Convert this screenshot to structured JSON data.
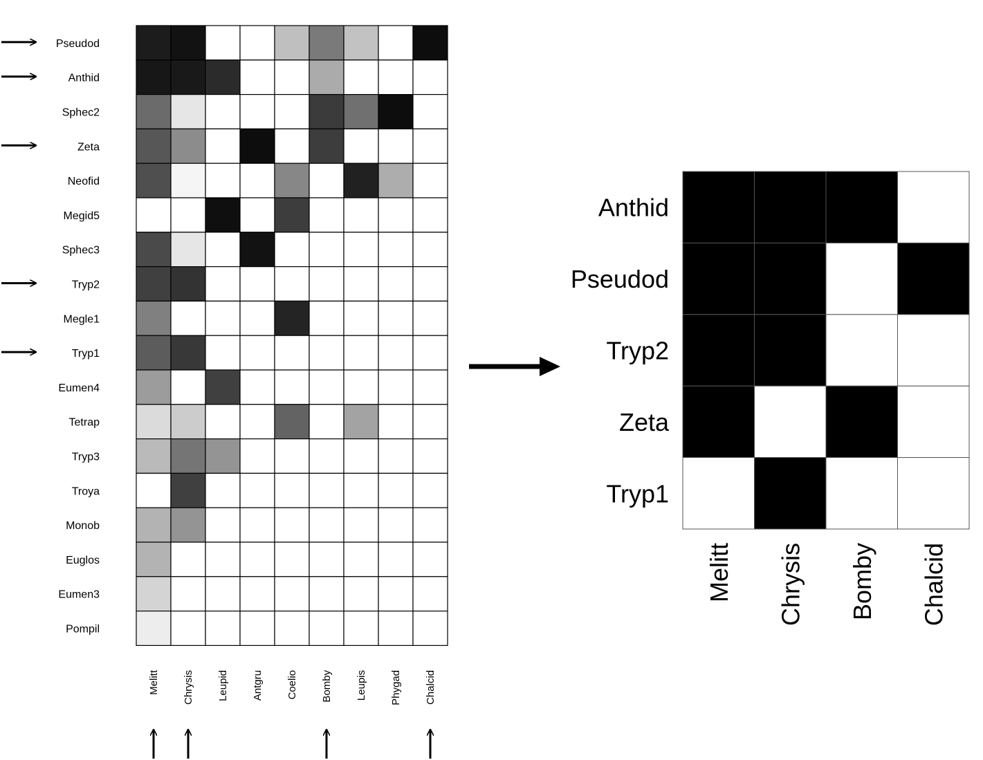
{
  "chart_data": [
    {
      "type": "heatmap",
      "rows": [
        "Pseudod",
        "Anthid",
        "Sphec2",
        "Zeta",
        "Neofid",
        "Megid5",
        "Sphec3",
        "Tryp2",
        "Megle1",
        "Tryp1",
        "Eumen4",
        "Tetrap",
        "Tryp3",
        "Troya",
        "Monob",
        "Euglos",
        "Eumen3",
        "Pompil"
      ],
      "columns": [
        "Melitt",
        "Chrysis",
        "Leupid",
        "Antgru",
        "Coelio",
        "Bomby",
        "Leupis",
        "Phygad",
        "Chalcid"
      ],
      "values": [
        [
          0.89,
          0.93,
          0,
          0,
          0.25,
          0.52,
          0.24,
          0,
          0.95
        ],
        [
          0.91,
          0.9,
          0.83,
          0,
          0,
          0.33,
          0,
          0,
          0
        ],
        [
          0.58,
          0.1,
          0,
          0,
          0,
          0.77,
          0.56,
          0.95,
          0
        ],
        [
          0.66,
          0.45,
          0,
          0.95,
          0,
          0.76,
          0,
          0,
          0
        ],
        [
          0.69,
          0.04,
          0,
          0,
          0.47,
          0,
          0.87,
          0.32,
          0
        ],
        [
          0,
          0,
          0.94,
          0,
          0.76,
          0,
          0,
          0,
          0
        ],
        [
          0.71,
          0.1,
          0,
          0.93,
          0,
          0,
          0,
          0,
          0
        ],
        [
          0.75,
          0.8,
          0,
          0,
          0,
          0,
          0,
          0,
          0
        ],
        [
          0.5,
          0,
          0,
          0,
          0.86,
          0,
          0,
          0,
          0
        ],
        [
          0.64,
          0.78,
          0,
          0,
          0,
          0,
          0,
          0,
          0
        ],
        [
          0.39,
          0,
          0.75,
          0,
          0,
          0,
          0,
          0,
          0
        ],
        [
          0.14,
          0.2,
          0,
          0,
          0.61,
          0,
          0.36,
          0,
          0
        ],
        [
          0.27,
          0.54,
          0.42,
          0,
          0,
          0,
          0,
          0,
          0
        ],
        [
          0,
          0.75,
          0,
          0,
          0,
          0,
          0,
          0,
          0
        ],
        [
          0.3,
          0.42,
          0,
          0,
          0,
          0,
          0,
          0,
          0
        ],
        [
          0.3,
          0,
          0,
          0,
          0,
          0,
          0,
          0,
          0
        ],
        [
          0.17,
          0,
          0,
          0,
          0,
          0,
          0,
          0,
          0
        ],
        [
          0.07,
          0,
          0,
          0,
          0,
          0,
          0,
          0,
          0
        ]
      ],
      "highlighted_rows": [
        "Pseudod",
        "Anthid",
        "Zeta",
        "Tryp2",
        "Tryp1"
      ],
      "highlighted_columns": [
        "Melitt",
        "Chrysis",
        "Bomby",
        "Chalcid"
      ],
      "legend": "none",
      "grid": true
    },
    {
      "type": "heatmap",
      "rows": [
        "Anthid",
        "Pseudod",
        "Tryp2",
        "Zeta",
        "Tryp1"
      ],
      "columns": [
        "Melitt",
        "Chrysis",
        "Bomby",
        "Chalcid"
      ],
      "values": [
        [
          1,
          1,
          1,
          0
        ],
        [
          1,
          1,
          0,
          1
        ],
        [
          1,
          1,
          0,
          0
        ],
        [
          1,
          0,
          1,
          0
        ],
        [
          0,
          1,
          0,
          0
        ]
      ],
      "legend": "none",
      "grid": true
    }
  ]
}
